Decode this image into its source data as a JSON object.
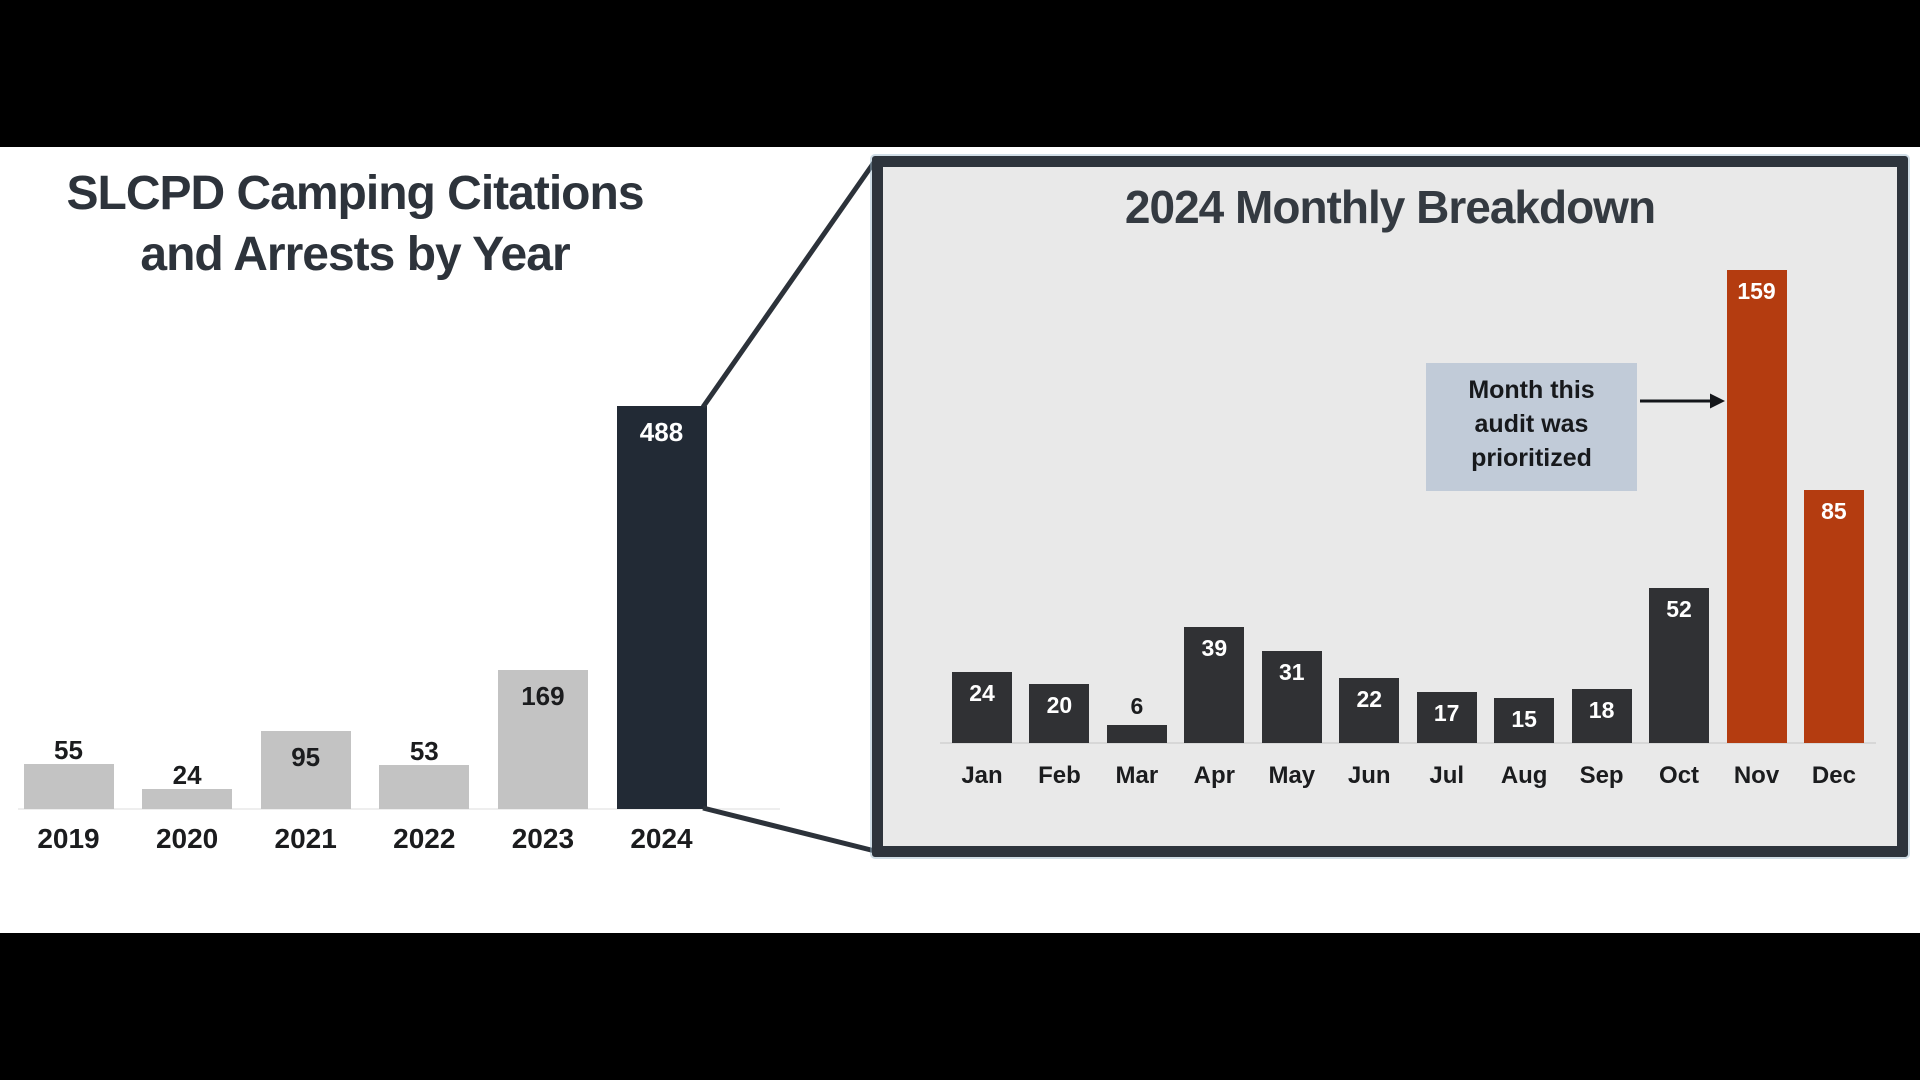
{
  "left_chart": {
    "title_line1": "SLCPD Camping Citations",
    "title_line2": "and Arrests by Year"
  },
  "panel": {
    "title": "2024 Monthly Breakdown"
  },
  "colors": {
    "yearly_bar_gray": "#c3c3c3",
    "yearly_bar_highlight_navy": "#222a35",
    "monthly_bar_charcoal": "#303134",
    "monthly_bar_highlight_red": "#b43c10",
    "panel_background": "#e9e9e9",
    "panel_border": "#2e343c",
    "connector_line": "#2c323a",
    "callout_background": "#c1cbd8",
    "dark_text": "#1b1c1e",
    "white_text": "#ffffff"
  },
  "chart_data": [
    {
      "type": "bar",
      "title": "SLCPD Camping Citations and Arrests by Year",
      "categories": [
        "2019",
        "2020",
        "2021",
        "2022",
        "2023",
        "2024"
      ],
      "values": [
        55,
        24,
        95,
        53,
        169,
        488
      ],
      "bar_colors": [
        "#c3c3c3",
        "#c3c3c3",
        "#c3c3c3",
        "#c3c3c3",
        "#c3c3c3",
        "#222a35"
      ],
      "value_inside": [
        false,
        false,
        true,
        false,
        true,
        true
      ],
      "value_colors": [
        "#1b1c1e",
        "#1b1c1e",
        "#1b1c1e",
        "#1b1c1e",
        "#1b1c1e",
        "#ffffff"
      ],
      "highlight_index": 5,
      "xlabel": "",
      "ylabel": "",
      "ylim": [
        0,
        520
      ],
      "grid": false,
      "legend": false
    },
    {
      "type": "bar",
      "title": "2024 Monthly Breakdown",
      "categories": [
        "Jan",
        "Feb",
        "Mar",
        "Apr",
        "May",
        "Jun",
        "Jul",
        "Aug",
        "Sep",
        "Oct",
        "Nov",
        "Dec"
      ],
      "values": [
        24,
        20,
        6,
        39,
        31,
        22,
        17,
        15,
        18,
        52,
        159,
        85
      ],
      "bar_colors": [
        "#303134",
        "#303134",
        "#303134",
        "#303134",
        "#303134",
        "#303134",
        "#303134",
        "#303134",
        "#303134",
        "#303134",
        "#b43c10",
        "#b43c10"
      ],
      "value_inside": [
        true,
        true,
        false,
        true,
        true,
        true,
        true,
        true,
        true,
        true,
        true,
        true
      ],
      "value_colors": [
        "#ffffff",
        "#ffffff",
        "#1b1c1e",
        "#ffffff",
        "#ffffff",
        "#ffffff",
        "#ffffff",
        "#ffffff",
        "#ffffff",
        "#ffffff",
        "#ffffff",
        "#ffffff"
      ],
      "highlight_indices": [
        10,
        11
      ],
      "annotation": {
        "lines": [
          "Month this",
          "audit was",
          "prioritized"
        ],
        "target": "Nov"
      },
      "xlabel": "",
      "ylabel": "",
      "ylim": [
        0,
        170
      ],
      "grid": false,
      "legend": false
    }
  ]
}
